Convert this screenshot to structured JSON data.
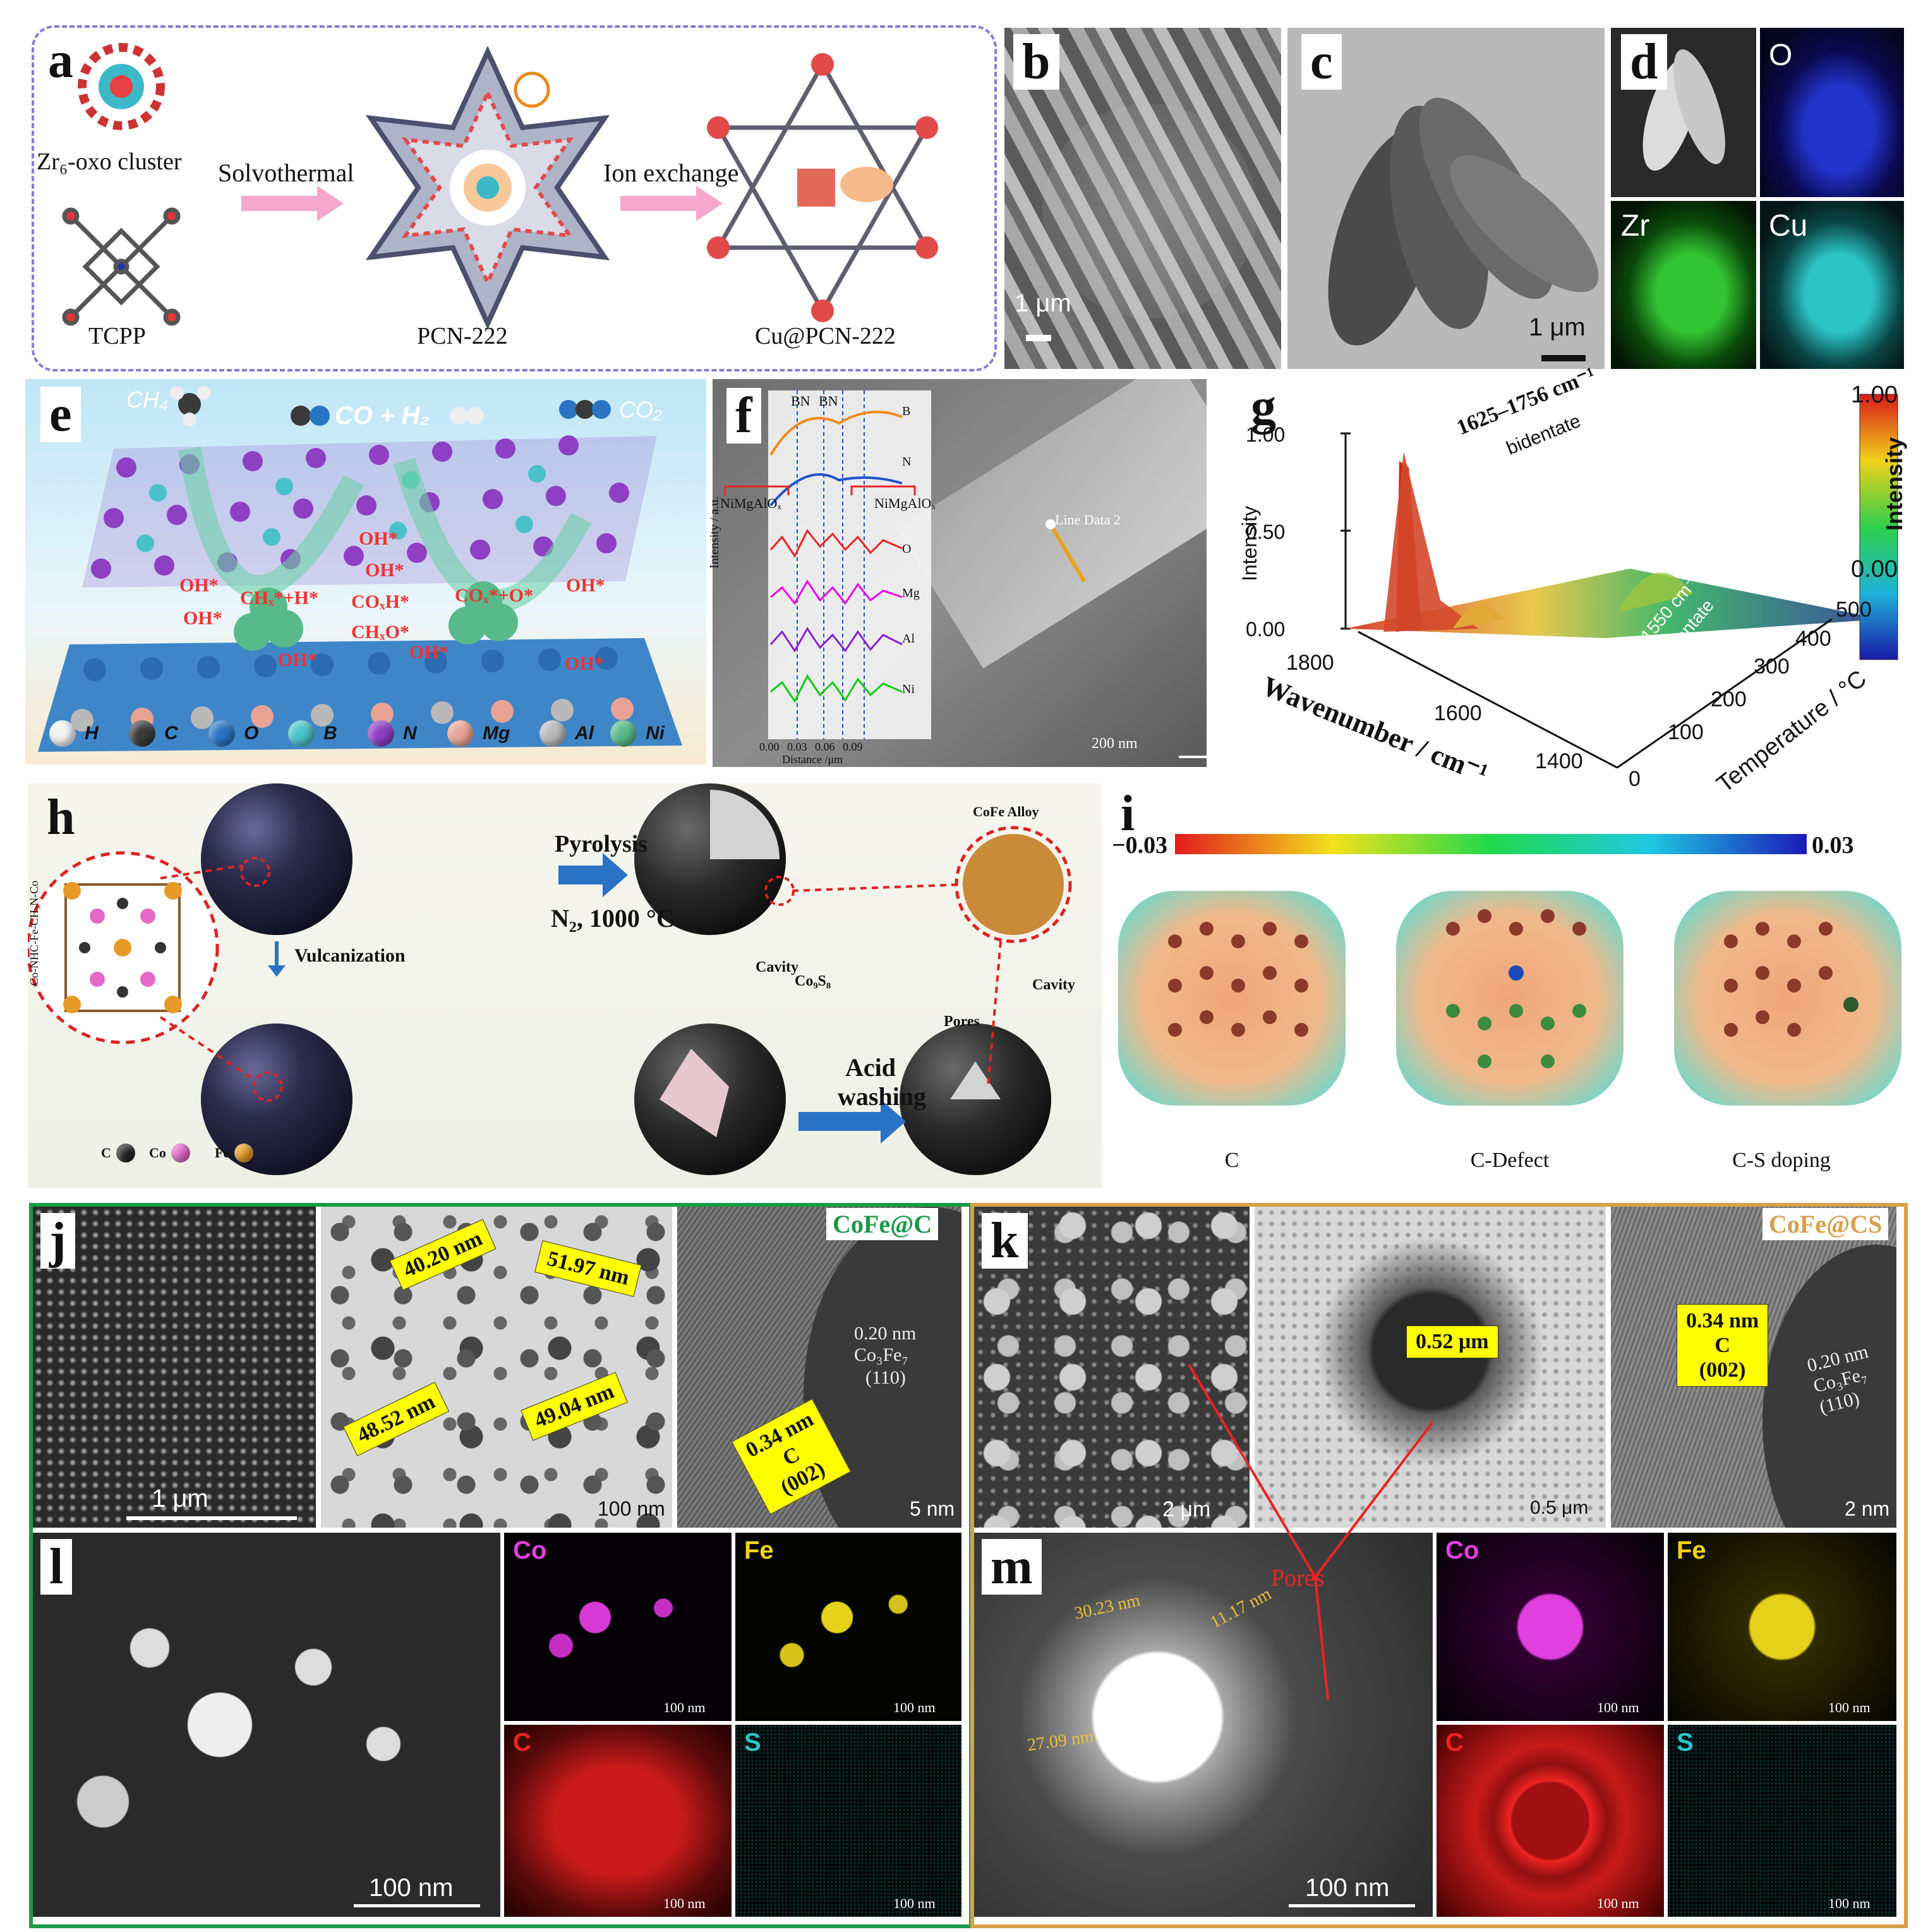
{
  "panels": {
    "a": {
      "letter": "a",
      "cluster": "Zr₆-oxo cluster",
      "linker": "TCPP",
      "step1": "Solvothermal",
      "step2": "Ion exchange",
      "mof1": "PCN-222",
      "mof2": "Cu@PCN-222"
    },
    "b": {
      "letter": "b",
      "scale": "1 μm"
    },
    "c": {
      "letter": "c",
      "scale": "1 μm"
    },
    "d": {
      "letter": "d",
      "maps": [
        "O",
        "Zr",
        "Cu"
      ]
    },
    "e": {
      "letter": "e",
      "ch4": "CH₄",
      "products": "CO + H₂",
      "co2": "CO₂",
      "surface_labels": [
        "OH*",
        "OH*",
        "CHₓ*+H*",
        "COₓH*",
        "COₓ*+O*",
        "OH*",
        "OH*",
        "CHₓO*",
        "OH*",
        "OH*",
        "OH*",
        "OH*"
      ],
      "legend": [
        "H",
        "C",
        "O",
        "B",
        "N",
        "Mg",
        "Al",
        "Ni"
      ],
      "colors": {
        "H": "#f2f2f2",
        "C": "#3a3a3a",
        "O": "#2b74c4",
        "B": "#48c2c8",
        "N": "#8e3fc4",
        "Mg": "#e8a394",
        "Al": "#b9b9b9",
        "Ni": "#58b98a"
      }
    },
    "f": {
      "letter": "f",
      "top_labels": [
        "BN",
        "BN"
      ],
      "side_labels": [
        "NiMgAlOₓ",
        "NiMgAlOₓ"
      ],
      "traces": [
        "B",
        "N",
        "O",
        "Mg",
        "Al",
        "Ni"
      ],
      "ylabel": "Intensity / a.u.",
      "xlabel": "Distance /μm",
      "xticks": [
        "0.00",
        "0.03",
        "0.06",
        "0.09"
      ],
      "line_label": "Line Data 2",
      "scale": "200 nm"
    },
    "g": {
      "letter": "g",
      "yticks": [
        "1.00",
        "0.50",
        "0.00"
      ],
      "ylabel": "Intensity",
      "xlabel": "Wavenumber / cm⁻¹",
      "xticks": [
        "1800",
        "1600",
        "1400"
      ],
      "tlabel": "Temperature / °C",
      "tticks": [
        "0",
        "100",
        "200",
        "300",
        "400",
        "500"
      ],
      "peak1": "1625–1756 cm⁻¹",
      "peak1_type": "bidentate",
      "peak2": "1520–1550 cm⁻¹",
      "peak2_type": "monodentate",
      "cbar_max": "1.00",
      "cbar_min": "0.00",
      "cbar_label": "Intensity"
    },
    "h": {
      "letter": "h",
      "precursor": "Co-NHC-Fe-CH₃N-Co",
      "vulcanization": "Vulcanization",
      "pyrolysis": "Pyrolysis",
      "condition": "N₂, 1000 °C",
      "cavity1": "Cavity",
      "co9s8": "Co₉S₈",
      "pores": "Pores",
      "cavity2": "Cavity",
      "acid": "Acid",
      "washing": "washing",
      "alloy": "CoFe Alloy",
      "legend": [
        "C",
        "Co",
        "Fe"
      ]
    },
    "i": {
      "letter": "i",
      "cmin": "−0.03",
      "cmax": "0.03",
      "labels": [
        "C",
        "C-Defect",
        "C-S doping"
      ]
    },
    "j": {
      "letter": "j",
      "tag": "CoFe@C",
      "scale1": "1 μm",
      "sizes": [
        "40.20 nm",
        "51.97 nm",
        "48.52 nm",
        "49.04 nm"
      ],
      "scale2": "100 nm",
      "dspacing1": "0.20 nm",
      "phase": "Co₃Fe₇",
      "plane1": "(110)",
      "dspacing2": "0.34 nm",
      "c": "C",
      "plane2": "(002)",
      "scale3": "5 nm"
    },
    "k": {
      "letter": "k",
      "tag": "CoFe@CS",
      "scale1": "2 μm",
      "size": "0.52 μm",
      "scale2": "0.5 μm",
      "dspacing2": "0.34 nm",
      "c": "C",
      "plane2": "(002)",
      "dspacing1": "0.20 nm",
      "phase": "Co₃Fe₇",
      "plane1": "(110)",
      "scale3": "2 nm"
    },
    "l": {
      "letter": "l",
      "scale": "100 nm",
      "maps": [
        "Co",
        "Fe",
        "C",
        "S"
      ],
      "map_scale": "100 nm"
    },
    "m": {
      "letter": "m",
      "pores": "Pores",
      "dims": [
        "30.23 nm",
        "11.17 nm",
        "27.09 nm"
      ],
      "scale": "100 nm",
      "maps": [
        "Co",
        "Fe",
        "C",
        "S"
      ],
      "map_scale": "100 nm"
    }
  }
}
